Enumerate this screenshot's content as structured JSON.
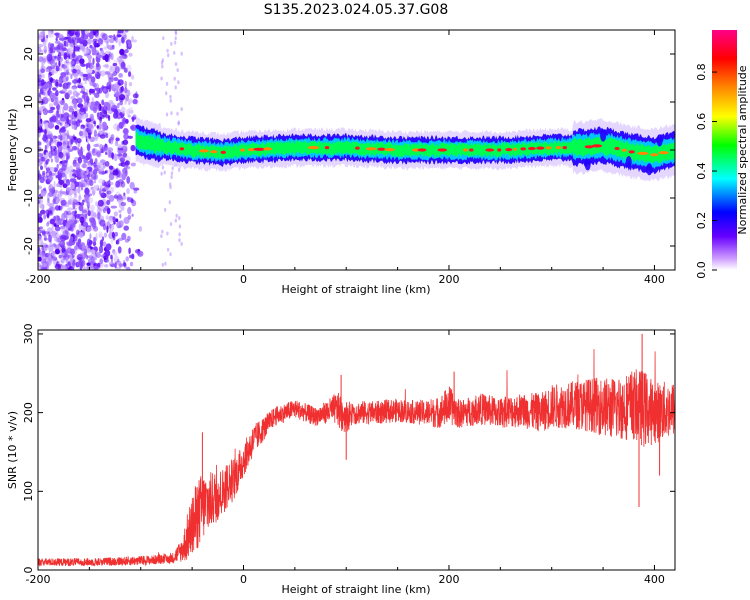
{
  "title": "S135.2023.024.05.37.G08",
  "chart_data": [
    {
      "type": "heatmap",
      "name": "spectrogram",
      "xlabel": "Height of straight line (km)",
      "ylabel": "Frequency (Hz)",
      "xlim": [
        -200,
        420
      ],
      "ylim": [
        -25,
        25
      ],
      "x_ticks": [
        -200,
        0,
        200,
        400
      ],
      "y_ticks": [
        -20,
        -10,
        0,
        10,
        20
      ],
      "noise_region_x": [
        -200,
        -60
      ],
      "signal_start_x": -105,
      "signal_center_hz": [
        [
          -105,
          2
        ],
        [
          -95,
          1.5
        ],
        [
          -85,
          1
        ],
        [
          -70,
          0.5
        ],
        [
          -50,
          0
        ],
        [
          -20,
          -0.5
        ],
        [
          0,
          0
        ],
        [
          50,
          0.5
        ],
        [
          100,
          0.5
        ],
        [
          150,
          0
        ],
        [
          200,
          0
        ],
        [
          250,
          0
        ],
        [
          300,
          0.5
        ],
        [
          330,
          0.5
        ],
        [
          350,
          1
        ],
        [
          380,
          -0.5
        ],
        [
          400,
          -1
        ],
        [
          420,
          0
        ]
      ],
      "colorbar": {
        "label": "Normalized spectral amplitude",
        "ticks": [
          "0.0",
          "0.2",
          "0.4",
          "0.6",
          "0.8"
        ],
        "range": [
          0,
          0.97
        ],
        "colors": [
          "#ffffff",
          "#cc99ff",
          "#6600ff",
          "#0000ff",
          "#00ffff",
          "#00ff00",
          "#ffff00",
          "#ff8800",
          "#ff0000",
          "#ff0088"
        ]
      }
    },
    {
      "type": "line",
      "name": "snr",
      "xlabel": "Height of straight line (km)",
      "ylabel": "SNR (10 * v/v)",
      "xlim": [
        -200,
        420
      ],
      "ylim": [
        0,
        305
      ],
      "x_ticks": [
        -200,
        0,
        200,
        400
      ],
      "y_ticks": [
        0,
        100,
        200,
        300
      ],
      "color": "#f03030",
      "x": [
        -200,
        -150,
        -100,
        -70,
        -60,
        -55,
        -50,
        -45,
        -40,
        -35,
        -30,
        -25,
        -20,
        -15,
        -10,
        -5,
        0,
        10,
        20,
        30,
        40,
        50,
        60,
        70,
        80,
        90,
        95,
        100,
        110,
        130,
        150,
        170,
        190,
        200,
        210,
        230,
        250,
        270,
        290,
        300,
        320,
        340,
        360,
        380,
        390,
        400,
        420
      ],
      "values": [
        10,
        10,
        12,
        14,
        25,
        40,
        55,
        70,
        80,
        85,
        90,
        95,
        100,
        110,
        115,
        125,
        140,
        165,
        180,
        195,
        200,
        205,
        200,
        195,
        200,
        205,
        200,
        195,
        200,
        200,
        203,
        200,
        200,
        210,
        198,
        205,
        200,
        203,
        200,
        208,
        210,
        210,
        205,
        210,
        205,
        200,
        205
      ],
      "spread": [
        5,
        5,
        6,
        6,
        15,
        30,
        40,
        45,
        45,
        40,
        35,
        35,
        30,
        30,
        28,
        25,
        22,
        20,
        15,
        12,
        12,
        12,
        12,
        12,
        14,
        20,
        25,
        20,
        15,
        15,
        15,
        15,
        20,
        25,
        18,
        20,
        20,
        22,
        25,
        28,
        30,
        35,
        40,
        45,
        50,
        40,
        35
      ]
    }
  ]
}
